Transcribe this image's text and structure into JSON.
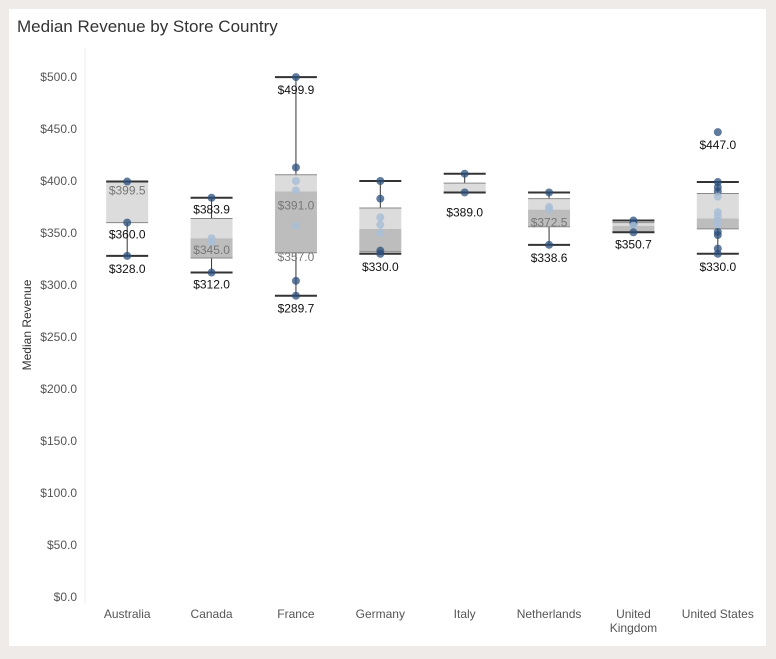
{
  "chart_data": {
    "type": "boxplot",
    "title": "Median Revenue by Store Country",
    "ylabel": "Median Revenue",
    "xlabel": "",
    "ylim": [
      0,
      510
    ],
    "grid": false,
    "y_ticks": [
      0,
      50,
      100,
      150,
      200,
      250,
      300,
      350,
      400,
      450,
      500
    ],
    "y_tick_labels": [
      "$0.0",
      "$50.0",
      "$100.0",
      "$150.0",
      "$200.0",
      "$250.0",
      "$300.0",
      "$350.0",
      "$400.0",
      "$450.0",
      "$500.0"
    ],
    "categories": [
      "Australia",
      "Canada",
      "France",
      "Germany",
      "Italy",
      "Netherlands",
      "United Kingdom",
      "United States"
    ],
    "category_labels": [
      [
        "Australia"
      ],
      [
        "Canada"
      ],
      [
        "France"
      ],
      [
        "Germany"
      ],
      [
        "Italy"
      ],
      [
        "Netherlands"
      ],
      [
        "United",
        "Kingdom"
      ],
      [
        "United States"
      ]
    ],
    "boxes": [
      {
        "category": "Australia",
        "whisker_low": 328.0,
        "q1": 360.0,
        "median": 360.0,
        "q3": 399.5,
        "whisker_high": 399.5,
        "labels": [
          "$399.5",
          "$360.0",
          "$328.0"
        ],
        "points": [
          399.5,
          360.0,
          328.0
        ]
      },
      {
        "category": "Canada",
        "whisker_low": 312.0,
        "q1": 326.0,
        "median": 345.0,
        "q3": 364.0,
        "whisker_high": 383.9,
        "labels": [
          "$383.9",
          "$345.0",
          "$312.0"
        ],
        "points": [
          383.9,
          345.0,
          341.0,
          312.0
        ]
      },
      {
        "category": "France",
        "whisker_low": 289.7,
        "q1": 331.0,
        "median": 390.0,
        "q3": 406.0,
        "whisker_high": 499.9,
        "labels": [
          "$499.9",
          "$391.0",
          "$357.0",
          "$289.7"
        ],
        "points": [
          499.9,
          413.0,
          400.0,
          391.0,
          357.0,
          304.0,
          289.7
        ]
      },
      {
        "category": "Germany",
        "whisker_low": 330.0,
        "q1": 332.0,
        "median": 354.0,
        "q3": 374.0,
        "whisker_high": 400.0,
        "labels": [
          "$330.0"
        ],
        "points": [
          400.0,
          383.0,
          365.0,
          358.0,
          350.0,
          333.0,
          330.0
        ]
      },
      {
        "category": "Italy",
        "whisker_low": 389.0,
        "q1": 389.0,
        "median": 389.0,
        "q3": 398.0,
        "whisker_high": 407.0,
        "labels": [
          "$389.0"
        ],
        "points": [
          407.0,
          389.0
        ]
      },
      {
        "category": "Netherlands",
        "whisker_low": 338.6,
        "q1": 356.0,
        "median": 372.5,
        "q3": 383.0,
        "whisker_high": 389.0,
        "labels": [
          "$372.5",
          "$338.6"
        ],
        "points": [
          389.0,
          375.0,
          372.5,
          338.6
        ]
      },
      {
        "category": "United Kingdom",
        "whisker_low": 350.7,
        "q1": 350.7,
        "median": 357.0,
        "q3": 360.0,
        "whisker_high": 362.0,
        "labels": [
          "$350.7"
        ],
        "points": [
          362.0,
          359.0,
          357.0,
          350.7
        ]
      },
      {
        "category": "United States",
        "whisker_low": 330.0,
        "q1": 354.0,
        "median": 364.0,
        "q3": 388.0,
        "whisker_high": 399.0,
        "labels": [
          "$447.0",
          "$330.0"
        ],
        "points": [
          447.0,
          399.0,
          394.0,
          390.0,
          385.0,
          370.0,
          366.0,
          362.0,
          358.0,
          351.0,
          348.0,
          335.0,
          330.0
        ]
      }
    ],
    "colors": {
      "upper_box": "#dcdcdc",
      "lower_box": "#bdbdbd",
      "whisker": "#333333",
      "point_dark": "#2c4f7c",
      "point_light": "#a9bed6",
      "axis_text": "#555555",
      "label_text": "#111111",
      "label_text_muted": "#777777"
    }
  }
}
